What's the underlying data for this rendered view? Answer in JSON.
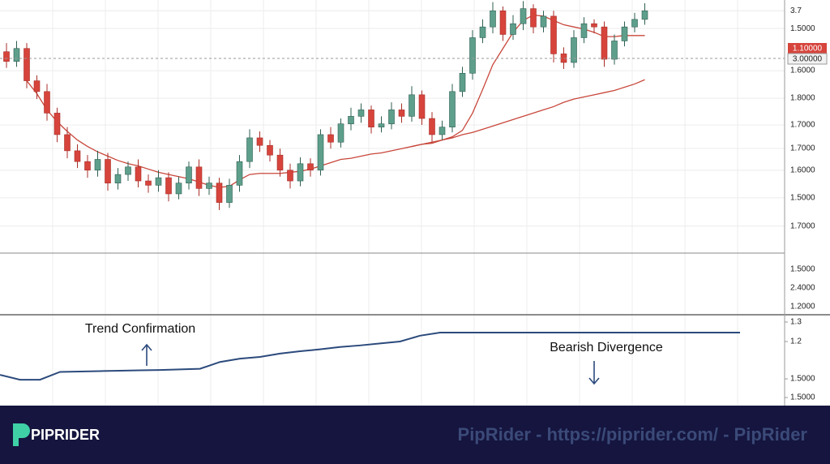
{
  "chart_data": {
    "type": "candlestick",
    "ylim": [
      1.45,
      3.8
    ],
    "yticks": [
      3.7,
      {
        "value": 3.535,
        "label": "1.5000"
      },
      {
        "value": 3.144,
        "label": "1.6000"
      },
      {
        "value": 2.888,
        "label": "1.8000"
      },
      {
        "value": 2.64,
        "label": "1.7000"
      },
      {
        "value": 2.422,
        "label": "1.7000"
      },
      {
        "value": 2.219,
        "label": "1.6000"
      },
      {
        "value": 1.963,
        "label": "1.5000"
      },
      {
        "value": 1.7,
        "label": "1.7000"
      }
    ],
    "price_tags": [
      "1.10000",
      "3.00000"
    ],
    "up_color": "#5e9f8c",
    "down_color": "#d6443c",
    "grid": true,
    "open": [
      3.32,
      3.23,
      3.35,
      3.05,
      2.95,
      2.75,
      2.55,
      2.4,
      2.3,
      2.22,
      2.32,
      2.1,
      2.18,
      2.25,
      2.12,
      2.08,
      2.15,
      2.0,
      2.1,
      2.25,
      2.05,
      2.1,
      1.92,
      2.08,
      2.3,
      2.52,
      2.45,
      2.36,
      2.22,
      2.12,
      2.28,
      2.22,
      2.55,
      2.48,
      2.65,
      2.72,
      2.78,
      2.62,
      2.65,
      2.78,
      2.72,
      2.92,
      2.7,
      2.55,
      2.62,
      2.95,
      3.12,
      3.45,
      3.55,
      3.7,
      3.48,
      3.58,
      3.72,
      3.55,
      3.65,
      3.3,
      3.22,
      3.45,
      3.58,
      3.55,
      3.25,
      3.42,
      3.55,
      3.62
    ],
    "high": [
      3.4,
      3.42,
      3.4,
      3.1,
      3.02,
      2.8,
      2.62,
      2.46,
      2.36,
      2.4,
      2.38,
      2.24,
      2.3,
      2.32,
      2.18,
      2.22,
      2.2,
      2.16,
      2.3,
      2.32,
      2.16,
      2.15,
      2.14,
      2.36,
      2.6,
      2.58,
      2.5,
      2.42,
      2.28,
      2.34,
      2.33,
      2.6,
      2.62,
      2.7,
      2.8,
      2.84,
      2.82,
      2.72,
      2.85,
      2.84,
      3.0,
      2.96,
      2.76,
      2.68,
      3.02,
      3.18,
      3.52,
      3.62,
      3.78,
      3.74,
      3.66,
      3.79,
      3.76,
      3.7,
      3.7,
      3.36,
      3.52,
      3.64,
      3.62,
      3.6,
      3.48,
      3.6,
      3.68,
      3.77
    ],
    "low": [
      3.17,
      3.18,
      2.98,
      2.88,
      2.68,
      2.48,
      2.33,
      2.24,
      2.15,
      2.16,
      2.03,
      2.04,
      2.12,
      2.06,
      2.01,
      2.02,
      1.93,
      1.95,
      2.04,
      1.98,
      1.99,
      1.85,
      1.87,
      2.02,
      2.24,
      2.39,
      2.3,
      2.16,
      2.05,
      2.07,
      2.16,
      2.17,
      2.42,
      2.43,
      2.59,
      2.66,
      2.56,
      2.57,
      2.6,
      2.66,
      2.67,
      2.64,
      2.48,
      2.5,
      2.57,
      2.9,
      3.06,
      3.4,
      3.49,
      3.42,
      3.43,
      3.52,
      3.49,
      3.5,
      3.22,
      3.16,
      3.17,
      3.4,
      3.49,
      3.18,
      3.2,
      3.37,
      3.5,
      3.57
    ],
    "close": [
      3.23,
      3.35,
      3.05,
      2.95,
      2.75,
      2.55,
      2.4,
      2.3,
      2.22,
      2.32,
      2.1,
      2.18,
      2.25,
      2.12,
      2.08,
      2.15,
      2.0,
      2.1,
      2.25,
      2.05,
      2.1,
      1.92,
      2.08,
      2.3,
      2.52,
      2.45,
      2.36,
      2.22,
      2.12,
      2.28,
      2.22,
      2.55,
      2.48,
      2.65,
      2.72,
      2.78,
      2.62,
      2.65,
      2.78,
      2.72,
      2.92,
      2.7,
      2.55,
      2.62,
      2.95,
      3.12,
      3.45,
      3.55,
      3.7,
      3.48,
      3.58,
      3.72,
      3.55,
      3.65,
      3.3,
      3.22,
      3.45,
      3.58,
      3.55,
      3.25,
      3.42,
      3.55,
      3.62,
      3.7
    ],
    "series": [
      {
        "color": "#c8473b",
        "values": [
          null,
          null,
          3.05,
          2.93,
          2.78,
          2.67,
          2.58,
          2.5,
          2.44,
          2.39,
          2.35,
          2.31,
          2.28,
          2.26,
          2.23,
          2.2,
          2.18,
          2.16,
          2.14,
          2.11,
          2.08,
          2.06,
          2.07,
          2.13,
          2.18,
          2.19,
          2.19,
          2.19,
          2.2,
          2.21,
          2.23,
          2.26,
          2.29,
          2.32,
          2.33,
          2.35,
          2.37,
          2.38,
          2.4,
          2.42,
          2.44,
          2.46,
          2.47,
          2.5,
          2.53,
          2.59,
          2.75,
          2.97,
          3.2,
          3.35,
          3.5,
          3.61,
          3.66,
          3.65,
          3.61,
          3.57,
          3.55,
          3.53,
          3.5,
          3.46,
          3.46,
          3.47,
          3.47,
          3.47
        ]
      },
      {
        "color": "#c8473b",
        "values": [
          null,
          null,
          null,
          null,
          null,
          null,
          null,
          null,
          null,
          null,
          null,
          null,
          null,
          null,
          null,
          null,
          null,
          null,
          null,
          null,
          null,
          null,
          null,
          null,
          null,
          null,
          null,
          null,
          null,
          null,
          null,
          null,
          null,
          null,
          null,
          null,
          null,
          null,
          null,
          null,
          2.44,
          2.46,
          2.48,
          2.5,
          2.52,
          2.55,
          2.57,
          2.6,
          2.63,
          2.66,
          2.69,
          2.72,
          2.75,
          2.78,
          2.81,
          2.85,
          2.88,
          2.9,
          2.92,
          2.94,
          2.96,
          2.99,
          3.02,
          3.06
        ]
      }
    ],
    "middle_labels": [
      "1.5000",
      "2.4000",
      "1.2000"
    ],
    "indicator": {
      "type": "line",
      "color": "#2c4a7c",
      "ylim": [
        0.871,
        1.3375
      ],
      "yticks": [
        1.3,
        1.2,
        {
          "value": 1.0083,
          "label": "1.5000"
        },
        {
          "value": 0.9125,
          "label": "1.5000"
        }
      ],
      "values": [
        1.029,
        1.004,
        1.004,
        1.044,
        1.046,
        1.048,
        1.05,
        1.052,
        1.054,
        1.057,
        1.06,
        1.095,
        1.112,
        1.121,
        1.138,
        1.15,
        1.16,
        1.172,
        1.18,
        1.19,
        1.2,
        1.23,
        1.246,
        1.246,
        1.246,
        1.246,
        1.246,
        1.246,
        1.246,
        1.246,
        1.246,
        1.246,
        1.246,
        1.246,
        1.246,
        1.246,
        1.246,
        1.246
      ],
      "annotations": [
        "Trend Confirmation",
        "Bearish Divergence"
      ]
    }
  },
  "footer": {
    "brand": "PIPRIDER",
    "watermark": "PipRider - https://piprider.com/ - PipRider"
  }
}
